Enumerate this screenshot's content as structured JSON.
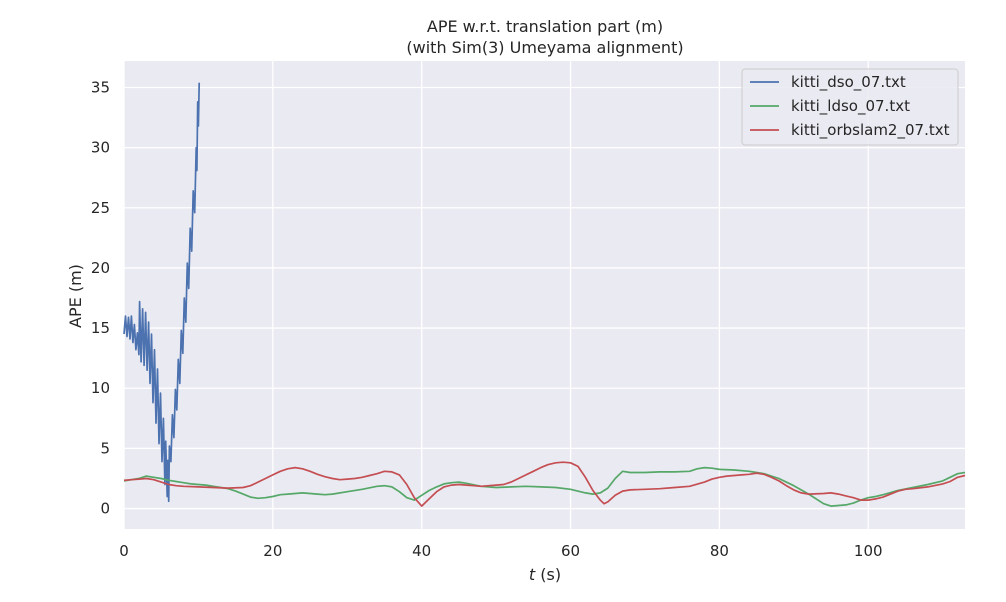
{
  "chart_data": {
    "type": "line",
    "title": "APE w.r.t. translation part (m)",
    "subtitle": "(with Sim(3) Umeyama alignment)",
    "xlabel_italic": "t",
    "xlabel_unit": " (s)",
    "ylabel": "APE (m)",
    "xlim": [
      0,
      113
    ],
    "ylim": [
      -1.7,
      37.2
    ],
    "xticks": [
      0,
      20,
      40,
      60,
      80,
      100
    ],
    "yticks": [
      0,
      5,
      10,
      15,
      20,
      25,
      30,
      35
    ],
    "grid": true,
    "legend_position": "top-right",
    "series": [
      {
        "name": "kitti_dso_07.txt",
        "color": "#4c72b0",
        "points": [
          [
            0.0,
            14.5
          ],
          [
            0.2,
            16.0
          ],
          [
            0.4,
            14.3
          ],
          [
            0.6,
            15.9
          ],
          [
            0.8,
            14.1
          ],
          [
            1.0,
            16.0
          ],
          [
            1.2,
            13.8
          ],
          [
            1.4,
            15.3
          ],
          [
            1.6,
            13.2
          ],
          [
            1.8,
            14.6
          ],
          [
            2.0,
            12.8
          ],
          [
            2.1,
            17.2
          ],
          [
            2.3,
            12.2
          ],
          [
            2.5,
            16.6
          ],
          [
            2.7,
            11.9
          ],
          [
            2.9,
            16.3
          ],
          [
            3.1,
            11.5
          ],
          [
            3.3,
            15.5
          ],
          [
            3.5,
            10.4
          ],
          [
            3.7,
            14.5
          ],
          [
            3.9,
            8.8
          ],
          [
            4.1,
            13.2
          ],
          [
            4.3,
            7.1
          ],
          [
            4.5,
            11.6
          ],
          [
            4.7,
            5.4
          ],
          [
            4.9,
            9.6
          ],
          [
            5.1,
            3.9
          ],
          [
            5.3,
            7.5
          ],
          [
            5.5,
            2.0
          ],
          [
            5.6,
            5.6
          ],
          [
            5.8,
            1.0
          ],
          [
            5.9,
            4.0
          ],
          [
            6.0,
            0.6
          ],
          [
            6.1,
            5.2
          ],
          [
            6.3,
            3.9
          ],
          [
            6.5,
            7.8
          ],
          [
            6.7,
            5.9
          ],
          [
            6.9,
            9.9
          ],
          [
            7.1,
            8.2
          ],
          [
            7.3,
            12.4
          ],
          [
            7.5,
            10.4
          ],
          [
            7.7,
            14.8
          ],
          [
            7.9,
            12.9
          ],
          [
            8.1,
            17.5
          ],
          [
            8.3,
            15.5
          ],
          [
            8.5,
            20.4
          ],
          [
            8.7,
            18.3
          ],
          [
            8.9,
            23.3
          ],
          [
            9.1,
            21.4
          ],
          [
            9.3,
            26.4
          ],
          [
            9.5,
            24.6
          ],
          [
            9.7,
            30.0
          ],
          [
            9.8,
            28.1
          ],
          [
            9.9,
            33.8
          ],
          [
            10.0,
            31.8
          ],
          [
            10.1,
            35.4
          ]
        ]
      },
      {
        "name": "kitti_ldso_07.txt",
        "color": "#55a868",
        "points": [
          [
            0,
            2.3
          ],
          [
            2,
            2.5
          ],
          [
            3,
            2.7
          ],
          [
            4,
            2.6
          ],
          [
            5,
            2.5
          ],
          [
            6,
            2.35
          ],
          [
            7,
            2.25
          ],
          [
            8,
            2.15
          ],
          [
            9,
            2.05
          ],
          [
            10,
            2.0
          ],
          [
            11,
            1.95
          ],
          [
            12,
            1.85
          ],
          [
            13,
            1.75
          ],
          [
            14,
            1.65
          ],
          [
            15,
            1.45
          ],
          [
            16,
            1.2
          ],
          [
            17,
            0.95
          ],
          [
            18,
            0.85
          ],
          [
            19,
            0.9
          ],
          [
            20,
            1.0
          ],
          [
            21,
            1.15
          ],
          [
            22,
            1.2
          ],
          [
            23,
            1.25
          ],
          [
            24,
            1.3
          ],
          [
            25,
            1.25
          ],
          [
            26,
            1.2
          ],
          [
            27,
            1.15
          ],
          [
            28,
            1.2
          ],
          [
            30,
            1.4
          ],
          [
            32,
            1.6
          ],
          [
            34,
            1.85
          ],
          [
            35,
            1.9
          ],
          [
            36,
            1.8
          ],
          [
            37,
            1.4
          ],
          [
            38,
            0.9
          ],
          [
            39,
            0.7
          ],
          [
            40,
            1.1
          ],
          [
            41,
            1.5
          ],
          [
            42,
            1.8
          ],
          [
            43,
            2.05
          ],
          [
            44,
            2.15
          ],
          [
            45,
            2.2
          ],
          [
            46,
            2.1
          ],
          [
            48,
            1.85
          ],
          [
            50,
            1.75
          ],
          [
            52,
            1.8
          ],
          [
            54,
            1.85
          ],
          [
            56,
            1.8
          ],
          [
            58,
            1.75
          ],
          [
            60,
            1.6
          ],
          [
            62,
            1.3
          ],
          [
            63,
            1.2
          ],
          [
            64,
            1.3
          ],
          [
            65,
            1.7
          ],
          [
            66,
            2.5
          ],
          [
            67,
            3.1
          ],
          [
            68,
            3.0
          ],
          [
            70,
            3.0
          ],
          [
            72,
            3.05
          ],
          [
            74,
            3.05
          ],
          [
            76,
            3.1
          ],
          [
            77,
            3.3
          ],
          [
            78,
            3.4
          ],
          [
            79,
            3.35
          ],
          [
            80,
            3.25
          ],
          [
            82,
            3.2
          ],
          [
            84,
            3.1
          ],
          [
            86,
            2.9
          ],
          [
            88,
            2.5
          ],
          [
            90,
            1.9
          ],
          [
            92,
            1.2
          ],
          [
            94,
            0.4
          ],
          [
            95,
            0.2
          ],
          [
            96,
            0.25
          ],
          [
            97,
            0.3
          ],
          [
            98,
            0.45
          ],
          [
            99,
            0.7
          ],
          [
            100,
            0.9
          ],
          [
            101,
            1.0
          ],
          [
            102,
            1.15
          ],
          [
            104,
            1.5
          ],
          [
            106,
            1.75
          ],
          [
            108,
            2.0
          ],
          [
            110,
            2.3
          ],
          [
            111,
            2.6
          ],
          [
            112,
            2.9
          ],
          [
            113,
            3.0
          ]
        ]
      },
      {
        "name": "kitti_orbslam2_07.txt",
        "color": "#c44e52",
        "points": [
          [
            0,
            2.35
          ],
          [
            1,
            2.4
          ],
          [
            2,
            2.45
          ],
          [
            3,
            2.5
          ],
          [
            4,
            2.4
          ],
          [
            5,
            2.2
          ],
          [
            6,
            2.0
          ],
          [
            7,
            1.9
          ],
          [
            8,
            1.85
          ],
          [
            10,
            1.8
          ],
          [
            12,
            1.75
          ],
          [
            14,
            1.7
          ],
          [
            16,
            1.75
          ],
          [
            17,
            1.9
          ],
          [
            18,
            2.2
          ],
          [
            19,
            2.5
          ],
          [
            20,
            2.8
          ],
          [
            21,
            3.1
          ],
          [
            22,
            3.3
          ],
          [
            23,
            3.4
          ],
          [
            24,
            3.3
          ],
          [
            25,
            3.1
          ],
          [
            26,
            2.85
          ],
          [
            27,
            2.65
          ],
          [
            28,
            2.5
          ],
          [
            29,
            2.4
          ],
          [
            30,
            2.45
          ],
          [
            31,
            2.5
          ],
          [
            32,
            2.6
          ],
          [
            33,
            2.75
          ],
          [
            34,
            2.9
          ],
          [
            35,
            3.1
          ],
          [
            36,
            3.05
          ],
          [
            37,
            2.8
          ],
          [
            38,
            2.0
          ],
          [
            39,
            0.9
          ],
          [
            40,
            0.2
          ],
          [
            41,
            0.8
          ],
          [
            42,
            1.4
          ],
          [
            43,
            1.8
          ],
          [
            44,
            1.95
          ],
          [
            45,
            2.0
          ],
          [
            46,
            1.95
          ],
          [
            47,
            1.9
          ],
          [
            48,
            1.85
          ],
          [
            49,
            1.9
          ],
          [
            50,
            1.95
          ],
          [
            51,
            2.0
          ],
          [
            52,
            2.2
          ],
          [
            53,
            2.5
          ],
          [
            54,
            2.8
          ],
          [
            55,
            3.1
          ],
          [
            56,
            3.4
          ],
          [
            57,
            3.65
          ],
          [
            58,
            3.8
          ],
          [
            59,
            3.85
          ],
          [
            60,
            3.8
          ],
          [
            61,
            3.5
          ],
          [
            62,
            2.6
          ],
          [
            63,
            1.5
          ],
          [
            64,
            0.7
          ],
          [
            64.5,
            0.4
          ],
          [
            65,
            0.55
          ],
          [
            66,
            1.1
          ],
          [
            67,
            1.45
          ],
          [
            68,
            1.55
          ],
          [
            70,
            1.6
          ],
          [
            72,
            1.65
          ],
          [
            74,
            1.75
          ],
          [
            76,
            1.85
          ],
          [
            78,
            2.2
          ],
          [
            79,
            2.45
          ],
          [
            80,
            2.6
          ],
          [
            81,
            2.7
          ],
          [
            82,
            2.75
          ],
          [
            83,
            2.8
          ],
          [
            84,
            2.85
          ],
          [
            85,
            2.95
          ],
          [
            86,
            2.85
          ],
          [
            87,
            2.6
          ],
          [
            88,
            2.3
          ],
          [
            89,
            1.9
          ],
          [
            90,
            1.55
          ],
          [
            91,
            1.3
          ],
          [
            92,
            1.2
          ],
          [
            94,
            1.25
          ],
          [
            95,
            1.3
          ],
          [
            96,
            1.2
          ],
          [
            97,
            1.05
          ],
          [
            98,
            0.9
          ],
          [
            99,
            0.7
          ],
          [
            100,
            0.7
          ],
          [
            101,
            0.8
          ],
          [
            102,
            0.95
          ],
          [
            103,
            1.2
          ],
          [
            104,
            1.45
          ],
          [
            105,
            1.6
          ],
          [
            106,
            1.65
          ],
          [
            108,
            1.8
          ],
          [
            110,
            2.05
          ],
          [
            111,
            2.25
          ],
          [
            112,
            2.6
          ],
          [
            113,
            2.75
          ]
        ]
      }
    ]
  }
}
